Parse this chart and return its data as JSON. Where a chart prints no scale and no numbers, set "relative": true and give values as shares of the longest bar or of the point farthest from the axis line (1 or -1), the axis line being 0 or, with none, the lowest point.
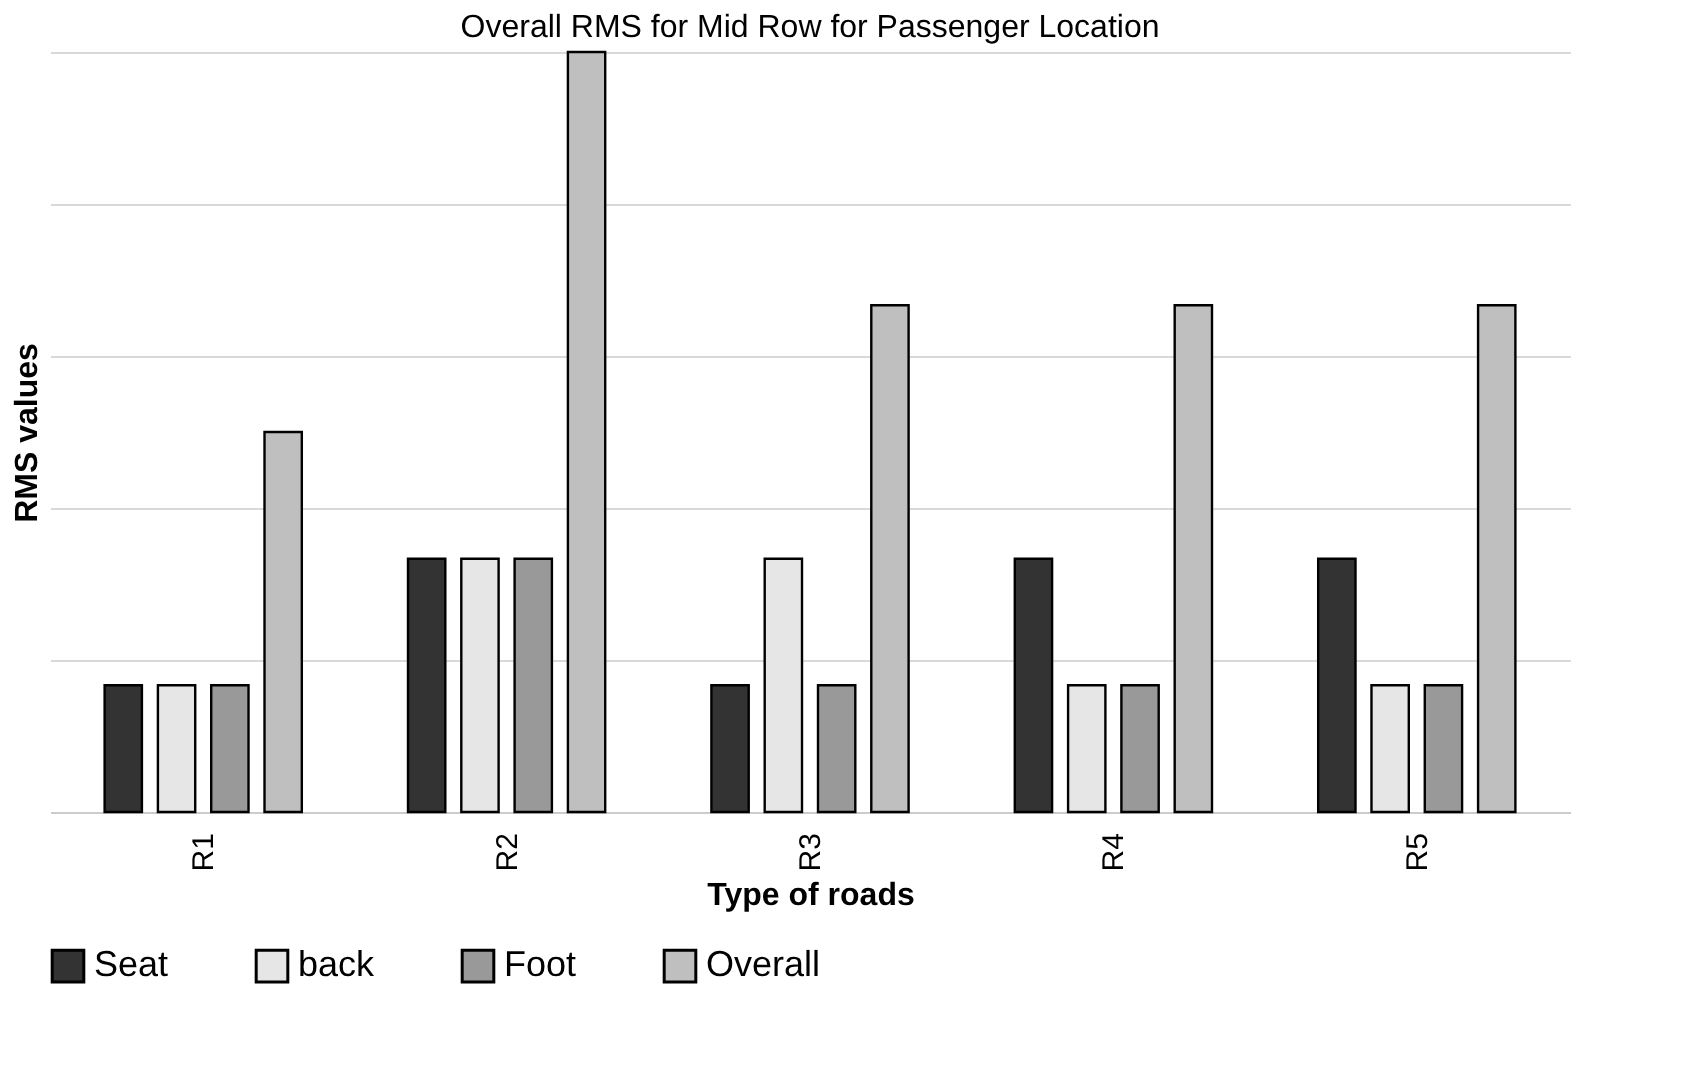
{
  "chart_data": {
    "type": "bar",
    "title": "Overall RMS for Mid Row for Passenger Location",
    "xlabel": "Type of roads",
    "ylabel": "RMS values",
    "categories": [
      "R1",
      "R2",
      "R3",
      "R4",
      "R5"
    ],
    "relative": true,
    "grid": "y",
    "legend": "bottom",
    "series": [
      {
        "name": "Seat",
        "color": "#333333",
        "values": [
          0.1667,
          0.3333,
          0.1667,
          0.3333,
          0.3333
        ]
      },
      {
        "name": "back",
        "color": "#e6e6e6",
        "values": [
          0.1667,
          0.3333,
          0.3333,
          0.1667,
          0.1667
        ]
      },
      {
        "name": "Foot",
        "color": "#999999",
        "values": [
          0.1667,
          0.3333,
          0.1667,
          0.1667,
          0.1667
        ]
      },
      {
        "name": "Overall",
        "color": "#bfbfbf",
        "values": [
          0.5,
          1,
          0.6667,
          0.6667,
          0.6667
        ]
      }
    ]
  }
}
